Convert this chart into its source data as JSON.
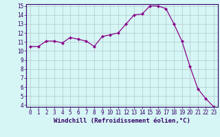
{
  "x": [
    0,
    1,
    2,
    3,
    4,
    5,
    6,
    7,
    8,
    9,
    10,
    11,
    12,
    13,
    14,
    15,
    16,
    17,
    18,
    19,
    20,
    21,
    22,
    23
  ],
  "y": [
    10.5,
    10.5,
    11.1,
    11.1,
    10.9,
    11.5,
    11.3,
    11.1,
    10.5,
    11.6,
    11.8,
    12.0,
    13.0,
    14.0,
    14.1,
    15.0,
    15.0,
    14.7,
    13.0,
    11.1,
    8.3,
    5.8,
    4.7,
    3.8
  ],
  "line_color": "#880088",
  "marker": "D",
  "marker_size": 2,
  "bg_color": "#d6f5f5",
  "grid_color": "#b0c8c8",
  "xlabel": "Windchill (Refroidissement éolien,°C)",
  "ylim": [
    4,
    15
  ],
  "xlim": [
    -0.5,
    23.5
  ],
  "yticks": [
    4,
    5,
    6,
    7,
    8,
    9,
    10,
    11,
    12,
    13,
    14,
    15
  ],
  "xticks": [
    0,
    1,
    2,
    3,
    4,
    5,
    6,
    7,
    8,
    9,
    10,
    11,
    12,
    13,
    14,
    15,
    16,
    17,
    18,
    19,
    20,
    21,
    22,
    23
  ],
  "tick_label_size": 5.5,
  "xlabel_size": 6.5
}
